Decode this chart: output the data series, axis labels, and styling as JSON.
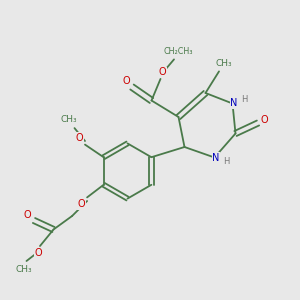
{
  "bg_color": "#e8e8e8",
  "bond_color": "#4a7a4a",
  "O_color": "#cc0000",
  "N_color": "#0000bb",
  "H_color": "#777777",
  "figsize": [
    3.0,
    3.0
  ],
  "dpi": 100,
  "xlim": [
    0,
    10
  ],
  "ylim": [
    0,
    10
  ]
}
